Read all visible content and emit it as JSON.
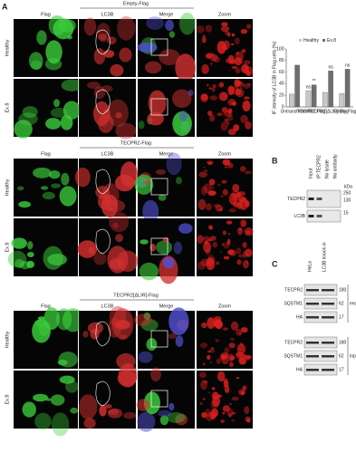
{
  "panel_a": {
    "label": "A",
    "columns": [
      "Flag",
      "LC3B",
      "Merge",
      "Zoom"
    ],
    "rows": [
      "Healthy",
      "Ex.8"
    ],
    "groups": [
      {
        "title": "Empty-Flag"
      },
      {
        "title": "TECPR2-Flag"
      },
      {
        "title": "TECPR2[ΔLIR]-Flag"
      }
    ]
  },
  "chart_data": {
    "type": "bar",
    "y_label": "IF intensity of LC3B in Flag cells (%)",
    "categories": [
      "Untransfected",
      "TECPR2 Flag",
      "TECPR2[ΔLIR] Flag",
      "Empty Flag"
    ],
    "series": [
      {
        "name": "Healthy",
        "color": "#c8c8c8",
        "values": [
          22,
          28,
          25,
          23
        ]
      },
      {
        "name": "Ex.8",
        "color": "#6e6e6e",
        "values": [
          72,
          38,
          62,
          65
        ]
      }
    ],
    "ylim": [
      0,
      100
    ],
    "yticks": [
      0,
      20,
      40,
      60,
      80,
      100
    ],
    "annotations": [
      {
        "text": "ns",
        "category": 1,
        "series": 0
      },
      {
        "text": "**",
        "category": 1,
        "series": 1
      },
      {
        "text": "ns",
        "category": 2,
        "series": 1
      },
      {
        "text": "ns",
        "category": 3,
        "series": 1
      }
    ]
  },
  "panel_b": {
    "label": "B",
    "lanes": [
      "Input",
      "IP:TECPR2",
      "No lysate",
      "No antibody"
    ],
    "kda": "kDa",
    "bands": [
      {
        "name": "TECPR2",
        "markers": [
          "250",
          "130"
        ]
      },
      {
        "name": "LC3B",
        "markers": [
          "15"
        ]
      }
    ]
  },
  "panel_c": {
    "label": "C",
    "lanes": [
      "HeLa",
      "LC3B knock-in"
    ],
    "blocks": [
      {
        "name": "endo-HA-IP",
        "rows": [
          {
            "name": "TECPR2",
            "marker": "180"
          },
          {
            "name": "SQSTM1",
            "marker": "62"
          },
          {
            "name": "HA",
            "marker": "17"
          }
        ]
      },
      {
        "name": "Input",
        "rows": [
          {
            "name": "TECPR2",
            "marker": "180"
          },
          {
            "name": "SQSTM1",
            "marker": "62"
          },
          {
            "name": "HA",
            "marker": "17"
          }
        ]
      }
    ]
  }
}
